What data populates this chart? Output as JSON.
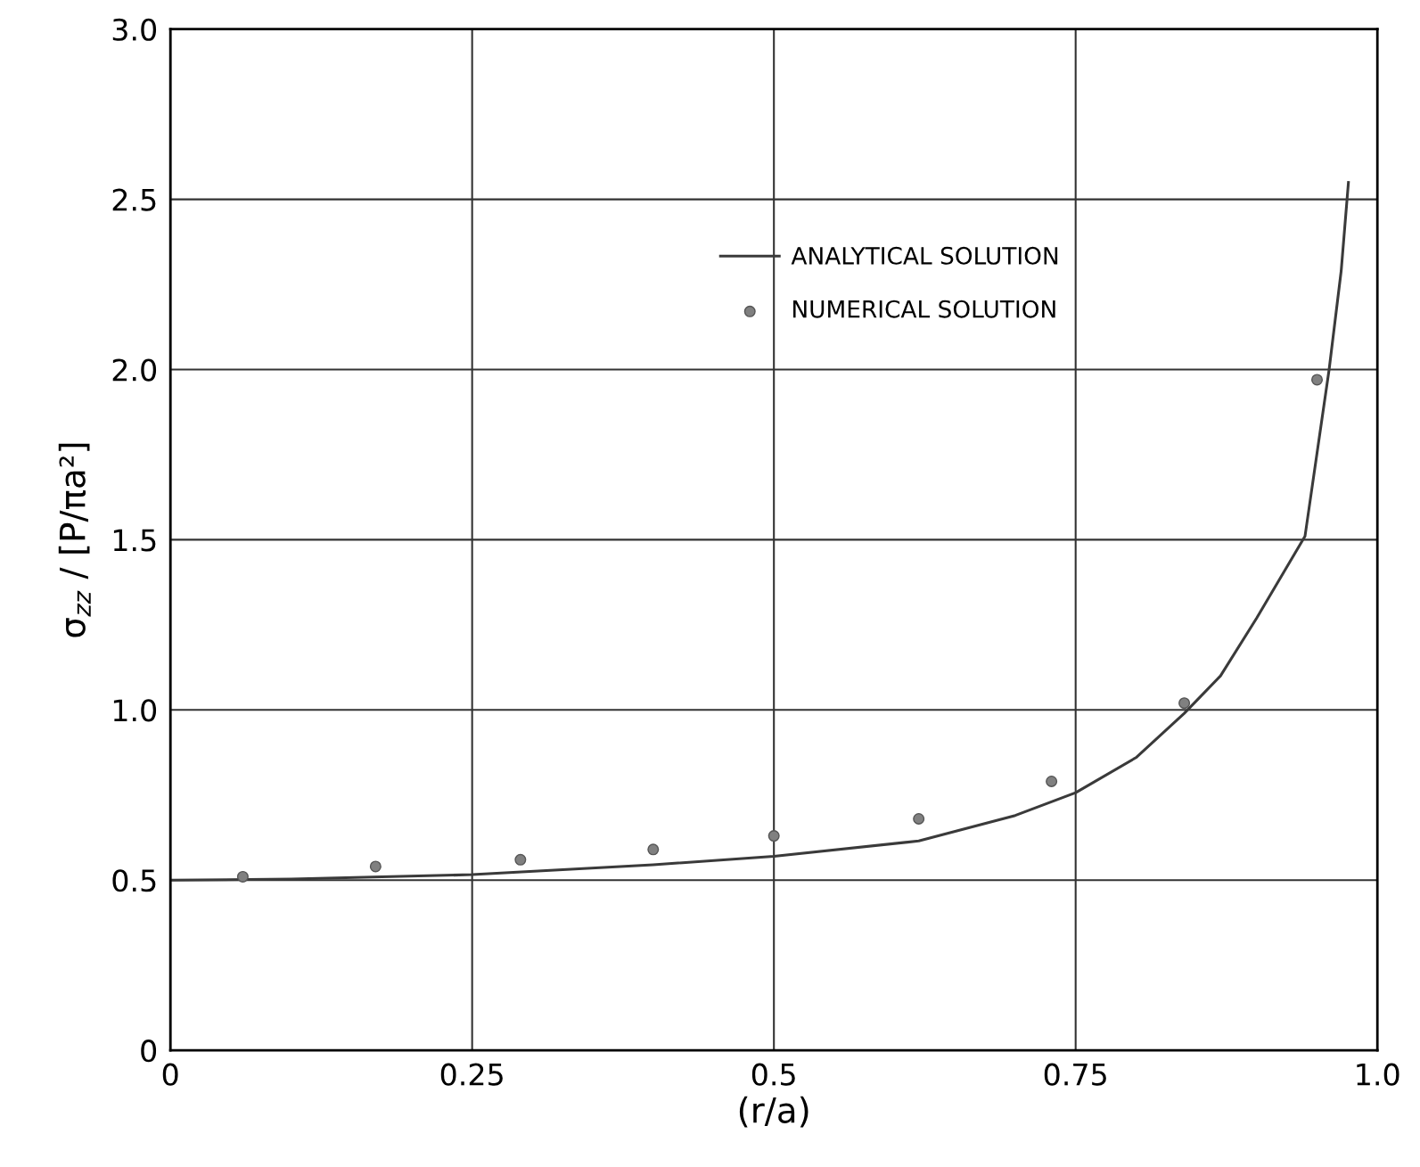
{
  "chart_data": {
    "type": "line",
    "xlabel": "(r/a)",
    "ylabel": "σ$_{zz}$ / [P/πa²]",
    "xlim": [
      0,
      1.0
    ],
    "ylim": [
      0,
      3.0
    ],
    "xticks": [
      0,
      0.25,
      0.5,
      0.75,
      {
        "value": 1.0,
        "label": "1.0"
      }
    ],
    "yticks": [
      0,
      0.5,
      {
        "value": 1.0,
        "label": "1.0"
      },
      1.5,
      {
        "value": 2.0,
        "label": "2.0"
      },
      2.5,
      {
        "value": 3.0,
        "label": "3.0"
      }
    ],
    "grid": true,
    "legend": "top",
    "series": [
      {
        "name": "ANALYTICAL SOLUTION",
        "color": "#3a3a3a",
        "marker": "none",
        "line_style": "solid",
        "x": [
          0,
          0.1,
          0.25,
          0.4,
          0.5,
          0.62,
          0.7,
          0.75,
          0.8,
          0.84,
          0.87,
          0.9,
          0.94,
          0.96,
          0.97,
          0.976
        ],
        "values": [
          0.5,
          0.503,
          0.516,
          0.545,
          0.57,
          0.615,
          0.69,
          0.757,
          0.86,
          0.99,
          1.1,
          1.27,
          1.51,
          2.0,
          2.29,
          2.55
        ]
      },
      {
        "name": "NUMERICAL SOLUTION",
        "type": "scatter",
        "color": "#808080",
        "marker": "circle",
        "x": [
          0.06,
          0.17,
          0.29,
          0.4,
          0.5,
          0.62,
          0.73,
          0.84,
          0.95
        ],
        "values": [
          0.51,
          0.54,
          0.56,
          0.59,
          0.63,
          0.68,
          0.79,
          1.02,
          1.97
        ]
      }
    ]
  }
}
